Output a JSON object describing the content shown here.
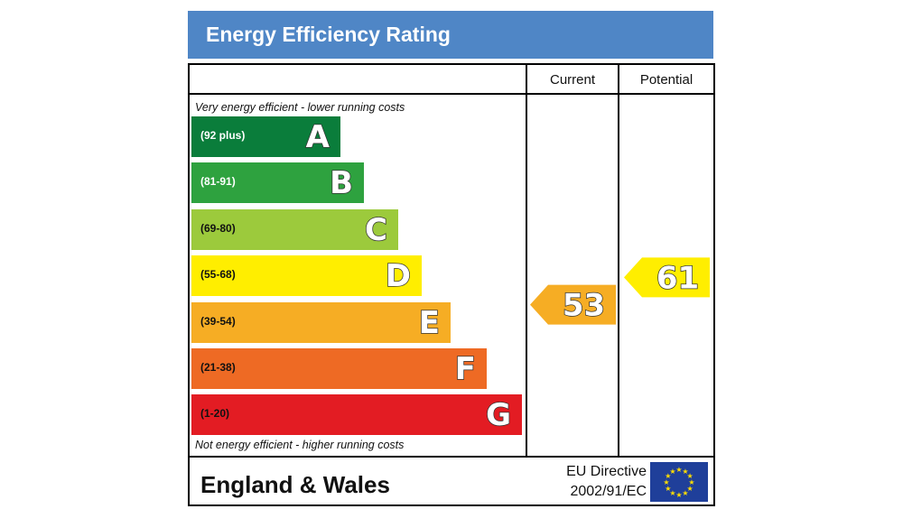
{
  "chart_data": {
    "type": "bar",
    "title": "Energy Efficiency Rating",
    "columns": [
      "Current",
      "Potential"
    ],
    "top_note": "Very energy efficient - lower running costs",
    "bottom_note": "Not energy efficient - higher running costs",
    "bands": [
      {
        "letter": "A",
        "range": "(92 plus)",
        "color": "#0a7d3b",
        "range_color": "#ffffff"
      },
      {
        "letter": "B",
        "range": "(81-91)",
        "color": "#2ea23f",
        "range_color": "#ffffff"
      },
      {
        "letter": "C",
        "range": "(69-80)",
        "color": "#9cca3c",
        "range_color": "#111111"
      },
      {
        "letter": "D",
        "range": "(55-68)",
        "color": "#ffee00",
        "range_color": "#111111"
      },
      {
        "letter": "E",
        "range": "(39-54)",
        "color": "#f6ad24",
        "range_color": "#111111"
      },
      {
        "letter": "F",
        "range": "(21-38)",
        "color": "#ee6a24",
        "range_color": "#111111"
      },
      {
        "letter": "G",
        "range": "(1-20)",
        "color": "#e31c23",
        "range_color": "#111111"
      }
    ],
    "current": {
      "value": 53,
      "band": "E",
      "color": "#f6ad24"
    },
    "potential": {
      "value": 61,
      "band": "D",
      "color": "#ffee00"
    }
  },
  "footer": {
    "region": "England & Wales",
    "directive_line1": "EU Directive",
    "directive_line2": "2002/91/EC"
  },
  "icons": {
    "flag": "eu-flag-icon"
  }
}
